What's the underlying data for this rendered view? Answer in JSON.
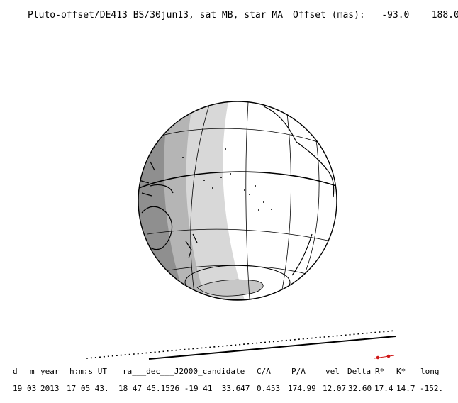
{
  "header": {
    "title": "Pluto-offset/DE413 BS/30jun13, sat MB, star MA",
    "offset_label": "Offset (mas):",
    "offset_ra": "-93.0",
    "offset_dec": "188.0"
  },
  "table": {
    "headers": [
      "d",
      "m",
      "year",
      "h:m:s UT",
      "ra___dec___J2000_candidate",
      "C/A",
      "P/A",
      "vel",
      "Delta",
      "R*",
      "K*",
      "long"
    ],
    "values": [
      "19",
      "03",
      "2013",
      "17 05 43.",
      "18 47 45.1526 -19 41  33.647",
      "0.453",
      "174.99",
      "12.07",
      "32.60",
      "17.4",
      "14.7",
      "-152."
    ]
  },
  "colors": {
    "night": "#8f8f8f",
    "twilight_dark": "#b5b5b5",
    "twilight_light": "#d8d8d8",
    "day": "#ffffff",
    "marker": "#d01818"
  }
}
